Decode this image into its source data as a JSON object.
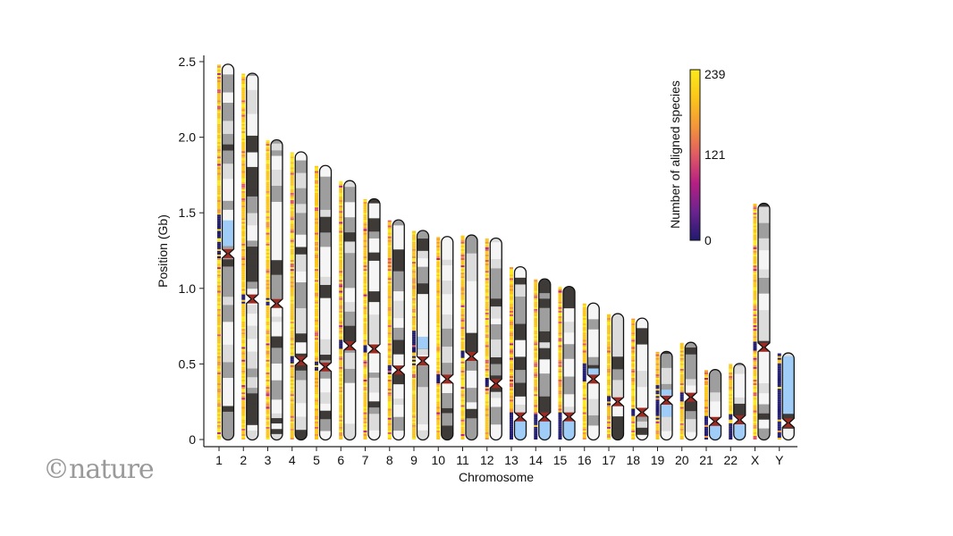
{
  "chart_data": {
    "type": "ideogram",
    "xlabel": "Chromosome",
    "ylabel": "Position (Gb)",
    "ylim": [
      0,
      2.5
    ],
    "yticks": [
      0,
      0.5,
      1.0,
      1.5,
      2.0,
      2.5
    ],
    "ytick_labels": [
      "0",
      "0.5",
      "1.0",
      "1.5",
      "2.0",
      "2.5"
    ],
    "categories": [
      "1",
      "2",
      "3",
      "4",
      "5",
      "6",
      "7",
      "8",
      "9",
      "10",
      "11",
      "12",
      "13",
      "14",
      "15",
      "16",
      "17",
      "18",
      "19",
      "20",
      "21",
      "22",
      "X",
      "Y"
    ],
    "lengths_gb": [
      2.48,
      2.42,
      1.98,
      1.9,
      1.81,
      1.71,
      1.59,
      1.45,
      1.38,
      1.34,
      1.35,
      1.33,
      1.14,
      1.06,
      1.01,
      0.9,
      0.83,
      0.8,
      0.58,
      0.64,
      0.46,
      0.5,
      1.56,
      0.57
    ],
    "centromeres_gb": [
      1.23,
      0.93,
      0.9,
      0.52,
      0.48,
      0.62,
      0.6,
      0.46,
      0.52,
      0.4,
      0.55,
      0.37,
      0.15,
      0.15,
      0.15,
      0.4,
      0.25,
      0.18,
      0.26,
      0.28,
      0.12,
      0.13,
      0.61,
      0.11
    ],
    "gap_regions_gb": {
      "1": [
        [
          1.28,
          1.45
        ]
      ],
      "9": [
        [
          0.6,
          0.68
        ]
      ],
      "13": [
        [
          0,
          0.12
        ]
      ],
      "14": [
        [
          0,
          0.12
        ]
      ],
      "15": [
        [
          0,
          0.12
        ]
      ],
      "16": [
        [
          0.4,
          0.47
        ]
      ],
      "19": [
        [
          0.27,
          0.33
        ],
        [
          0.15,
          0.24
        ]
      ],
      "21": [
        [
          0,
          0.1
        ]
      ],
      "22": [
        [
          0,
          0.1
        ]
      ],
      "Y": [
        [
          0.17,
          0.55
        ]
      ]
    },
    "colorbar": {
      "label": "Number of aligned species",
      "min": 0,
      "max": 239,
      "tick_labels": [
        "0",
        "121",
        "239"
      ],
      "colors": [
        "#1f1a6e",
        "#6a2390",
        "#b51f83",
        "#e05a63",
        "#f3953a",
        "#fbc61a",
        "#fbe91c"
      ]
    },
    "band_colors": [
      "#f4f5f4",
      "#dcdcdc",
      "#9e9e9e",
      "#3d3a38"
    ],
    "gap_color": "#9fcdf7",
    "centromere_color": "#9e2a22"
  },
  "watermark": "©nature"
}
